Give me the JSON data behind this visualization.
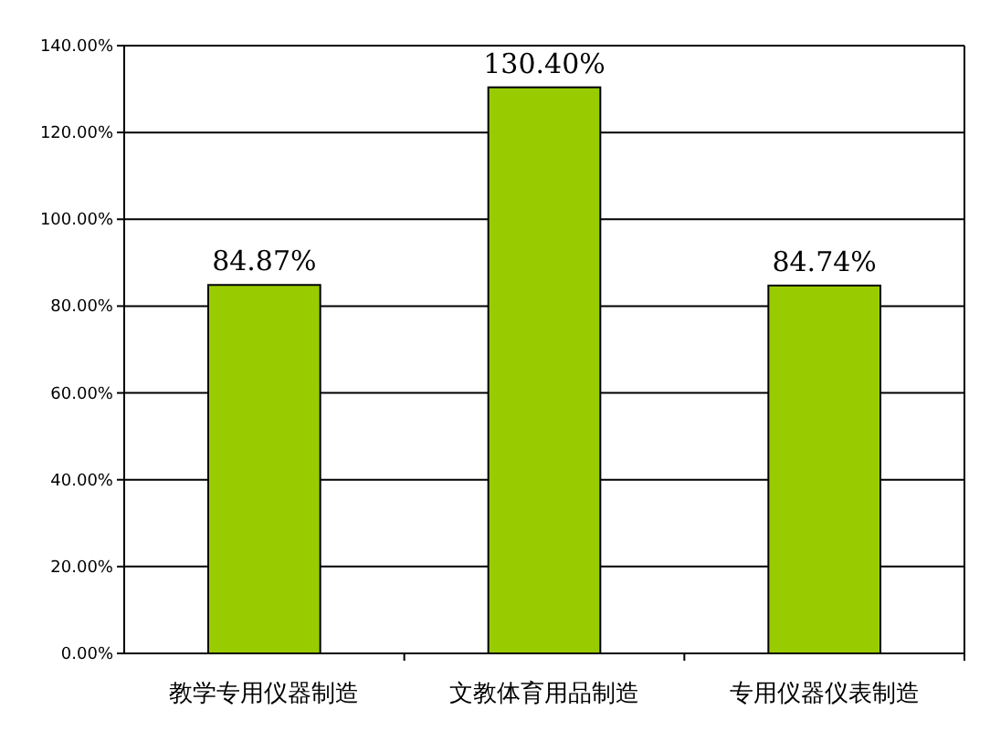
{
  "chart_data": {
    "type": "bar",
    "categories": [
      "教学专用仪器制造",
      "文教体育用品制造",
      "专用仪器仪表制造"
    ],
    "values": [
      84.87,
      130.4,
      84.74
    ],
    "value_labels": [
      "84.87%",
      "130.40%",
      "84.74%"
    ],
    "color": "#99cc00",
    "ylim": [
      0,
      140
    ],
    "yticks": [
      {
        "value": 0,
        "label": "0.00%"
      },
      {
        "value": 20,
        "label": "20.00%"
      },
      {
        "value": 40,
        "label": "40.00%"
      },
      {
        "value": 60,
        "label": "60.00%"
      },
      {
        "value": 80,
        "label": "80.00%"
      },
      {
        "value": 100,
        "label": "100.00%"
      },
      {
        "value": 120,
        "label": "120.00%"
      },
      {
        "value": 140,
        "label": "140.00%"
      }
    ],
    "grid": "y"
  }
}
